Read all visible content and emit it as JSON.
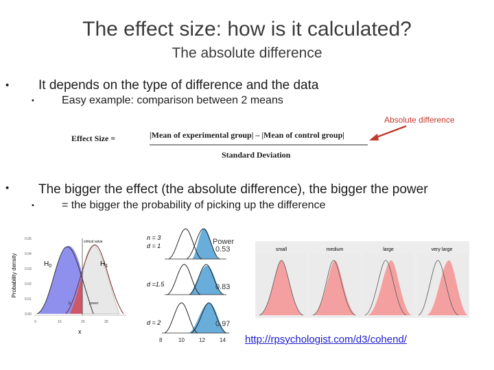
{
  "slide": {
    "title": "The effect size: how is it calculated?",
    "subtitle": "The absolute difference",
    "bullets": [
      {
        "marker": "•",
        "text": "It depends on the type of difference and the data",
        "sub": {
          "marker": "•",
          "text": "Easy example: comparison between 2 means"
        }
      },
      {
        "marker": "•",
        "text": "The bigger the effect (the absolute difference), the bigger the power",
        "sub": {
          "marker": "•",
          "text": "= the bigger the probability of picking up the difference"
        }
      }
    ],
    "annotation": "Absolute difference",
    "formula": {
      "label": "Effect Size =",
      "numerator": "|Mean of experimental group| – |Mean of control group|",
      "denominator": "Standard Deviation"
    },
    "link": "http://rpsychologist.com/d3/cohend/"
  },
  "figure_left": {
    "ylabel": "Probability density",
    "xlabel": "x",
    "y_ticks": [
      "0.05",
      "0.04",
      "0.03",
      "0.02",
      "0.01",
      "0.00"
    ],
    "x_ticks": [
      "0",
      "10",
      "20",
      "30"
    ],
    "h0": "H",
    "h0_sub": "0",
    "h1": "H",
    "h1_sub": "1",
    "critical": "critical value",
    "alpha": "α",
    "beta": "β",
    "power": "power"
  },
  "figure_mid": {
    "power_title": "Power",
    "panels": [
      {
        "n": "n = 3",
        "d": "d = 1",
        "power": "0.53"
      },
      {
        "d": "d =1.5",
        "power": "0.83"
      },
      {
        "d": "d = 2",
        "power": "0.97"
      }
    ],
    "x_ticks": [
      "8",
      "10",
      "12",
      "14"
    ]
  },
  "figure_right": {
    "panels": [
      "small",
      "medium",
      "large",
      "very large"
    ]
  },
  "colors": {
    "accent_red": "#c0392b",
    "fill_blue": "#4f9fd4",
    "fill_pink": "#f4a0a0",
    "link": "#1a1acc"
  }
}
